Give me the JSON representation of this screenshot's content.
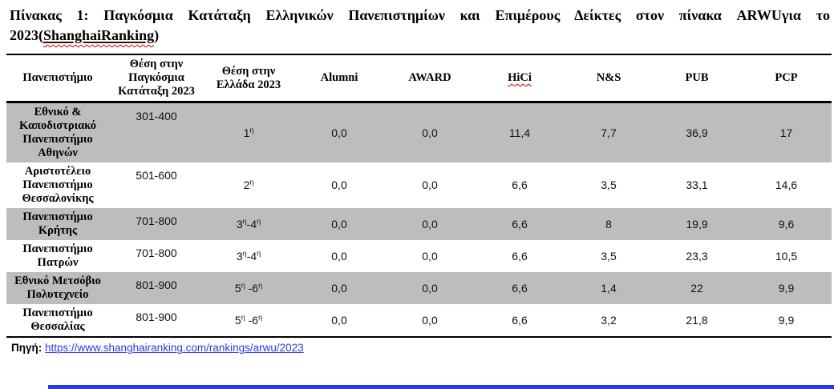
{
  "title": {
    "line1": "Πίνακας 1: Παγκόσμια Κατάταξη Ελληνικών Πανεπιστημίων και Επιμέρους Δείκτες στον πίνακα ARWUγια το",
    "line2_prefix": "2023(",
    "line2_word": "ShanghaiRanking",
    "line2_suffix": ")"
  },
  "table": {
    "columns": [
      {
        "label": "Πανεπιστήμιο"
      },
      {
        "label": "Θέση στην Παγκόσμια Κατάταξη 2023"
      },
      {
        "label": "Θέση στην Ελλάδα 2023"
      },
      {
        "label": "Alumni"
      },
      {
        "label": "AWARD"
      },
      {
        "label": "HiCi",
        "squiggle": true
      },
      {
        "label": "N&S"
      },
      {
        "label": "PUB"
      },
      {
        "label": "PCP"
      }
    ],
    "rows": [
      {
        "name": "Εθνικό & Καποδιστριακό Πανεπιστήμιο Αθηνών",
        "values": [
          "301-400",
          "1η",
          "0,0",
          "0,0",
          "11,4",
          "7,7",
          "36,9",
          "17"
        ],
        "shaded": true
      },
      {
        "name": "Αριστοτέλειο Πανεπιστήμιο Θεσσαλονίκης",
        "values": [
          "501-600",
          "2η",
          "0,0",
          "0,0",
          "6,6",
          "3,5",
          "33,1",
          "14,6"
        ],
        "shaded": false
      },
      {
        "name": "Πανεπιστήμιο Κρήτης",
        "values": [
          "701-800",
          "3η-4η",
          "0,0",
          "0,0",
          "6,6",
          "8",
          "19,9",
          "9,6"
        ],
        "shaded": true
      },
      {
        "name": "Πανεπιστήμιο Πατρών",
        "values": [
          "701-800",
          "3η-4η",
          "0,0",
          "0,0",
          "6,6",
          "3,5",
          "23,3",
          "10,5"
        ],
        "shaded": false
      },
      {
        "name": "Εθνικό Μετσόβιο Πολυτεχνείο",
        "values": [
          "801-900",
          "5η -6η",
          "0,0",
          "0,0",
          "6,6",
          "1,4",
          "22",
          "9,9"
        ],
        "shaded": true
      },
      {
        "name": "Πανεπιστήμιο Θεσσαλίας",
        "values": [
          "801-900",
          "5η -6η",
          "0,0",
          "0,0",
          "6,6",
          "3,2",
          "21,8",
          "9,9"
        ],
        "shaded": false
      }
    ]
  },
  "source": {
    "label": "Πηγή:",
    "url": "https://www.shanghairanking.com/rankings/arwu/2023"
  },
  "colors": {
    "row_shade": "#bdbdbd",
    "link_blue": "#2b3be2",
    "squiggle_red": "#c00000"
  }
}
